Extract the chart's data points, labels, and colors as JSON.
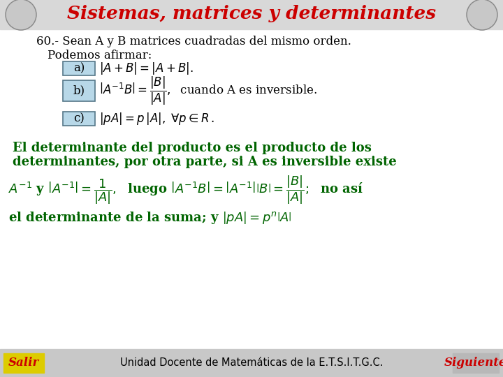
{
  "bg_color": "#ffffff",
  "header_bg": "#d8d8d8",
  "title": "Sistemas, matrices y determinantes",
  "title_color": "#cc0000",
  "title_fontsize": 19,
  "black": "#000000",
  "green": "#006400",
  "body_fontsize": 12,
  "box_fill": "#b8d8e8",
  "box_border": "#557788",
  "footer_bg": "#c8c8c8",
  "footer_text": "Unidad Docente de Matemáticas de la E.T.S.I.T.G.C.",
  "salir_text": "Salir",
  "salir_color": "#ddcc00",
  "salir_text_color": "#cc0000",
  "siguiente_text": "Siguiente",
  "siguiente_color": "#cc0000"
}
